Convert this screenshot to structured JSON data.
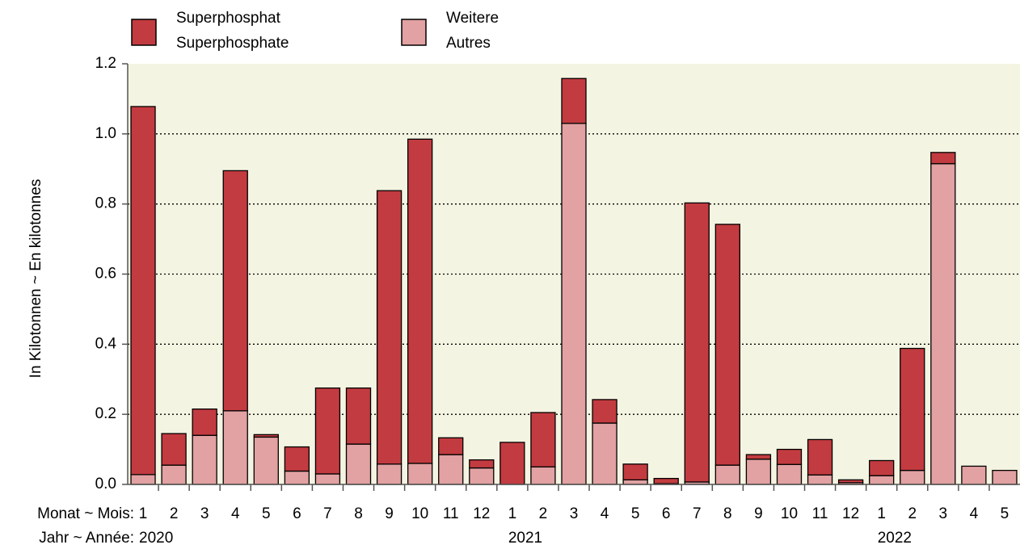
{
  "chart_data": {
    "type": "stacked-bar",
    "y_label": "In Kilotonnen  ~  En kilotonnes",
    "x_label_month": "Monat ~ Mois:",
    "x_label_year": "Jahr ~ Année:",
    "categories": [
      "1",
      "2",
      "3",
      "4",
      "5",
      "6",
      "7",
      "8",
      "9",
      "10",
      "11",
      "12",
      "1",
      "2",
      "3",
      "4",
      "5",
      "6",
      "7",
      "8",
      "9",
      "10",
      "11",
      "12",
      "1",
      "2",
      "3",
      "4",
      "5"
    ],
    "years": [
      "2020",
      null,
      null,
      null,
      null,
      null,
      null,
      null,
      null,
      null,
      null,
      null,
      "2021",
      null,
      null,
      null,
      null,
      null,
      null,
      null,
      null,
      null,
      null,
      null,
      "2022",
      null,
      null,
      null,
      null
    ],
    "series": [
      {
        "name": [
          "Superphosphat",
          "Superphosphate"
        ],
        "color": "#c23b40",
        "values": [
          1.05,
          0.09,
          0.075,
          0.685,
          0.007,
          0.069,
          0.245,
          0.16,
          0.78,
          0.925,
          0.048,
          0.023,
          0.12,
          0.155,
          0.128,
          0.067,
          0.045,
          0.015,
          0.796,
          0.687,
          0.013,
          0.043,
          0.101,
          0.008,
          0.043,
          0.348,
          0.032,
          0,
          0
        ]
      },
      {
        "name": [
          "Weitere",
          "Autres"
        ],
        "color": "#e2a1a2",
        "values": [
          0.028,
          0.055,
          0.14,
          0.21,
          0.135,
          0.038,
          0.03,
          0.115,
          0.058,
          0.06,
          0.085,
          0.047,
          0,
          0.05,
          1.03,
          0.175,
          0.013,
          0.002,
          0.007,
          0.055,
          0.072,
          0.057,
          0.027,
          0.005,
          0.025,
          0.04,
          0.915,
          0.052,
          0.04
        ]
      }
    ],
    "stack_order": "bottom-last",
    "ylim": [
      0,
      1.2
    ],
    "yticks": [
      {
        "value": 0,
        "label": "0.0"
      },
      0.2,
      0.4,
      0.6,
      0.8,
      {
        "value": 1,
        "label": "1.0"
      },
      1.2
    ],
    "grid": true,
    "background": "#f4f4e2"
  }
}
